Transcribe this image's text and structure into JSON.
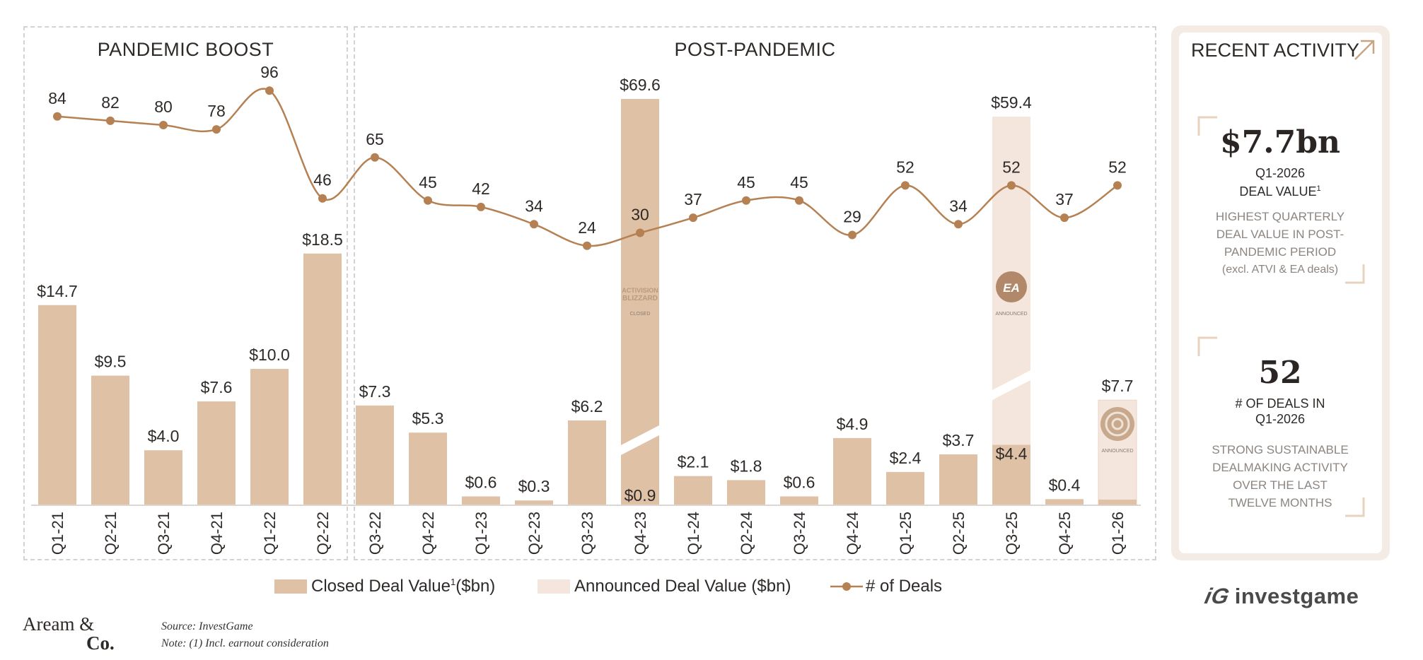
{
  "colors": {
    "closed": "#dfc1a5",
    "announced": "#f4e6dc",
    "line": "#b58153",
    "text": "#2e2a28",
    "muted": "#8d8580",
    "accent": "#c7a583"
  },
  "sections": [
    {
      "title": "PANDEMIC BOOST"
    },
    {
      "title": "POST-PANDEMIC"
    }
  ],
  "chart_data": {
    "type": "bar",
    "title": "",
    "categories": [
      "Q1-21",
      "Q2-21",
      "Q3-21",
      "Q4-21",
      "Q1-22",
      "Q2-22",
      "Q3-22",
      "Q4-22",
      "Q1-23",
      "Q2-23",
      "Q3-23",
      "Q4-23",
      "Q1-24",
      "Q2-24",
      "Q3-24",
      "Q4-24",
      "Q1-25",
      "Q2-25",
      "Q3-25",
      "Q4-25",
      "Q1-26"
    ],
    "series": [
      {
        "name": "Closed Deal Value",
        "values": [
          14.7,
          9.5,
          4.0,
          7.6,
          10.0,
          18.5,
          7.3,
          5.3,
          0.6,
          0.3,
          6.2,
          69.6,
          2.1,
          1.8,
          0.6,
          4.9,
          2.4,
          3.7,
          4.4,
          0.4,
          0.0
        ]
      },
      {
        "name": "Announced Deal Value ($bn)",
        "values": [
          0,
          0,
          0,
          0,
          0,
          0,
          0,
          0,
          0,
          0,
          0,
          0,
          0,
          0,
          0,
          0,
          0,
          0,
          55.0,
          0,
          7.7
        ]
      },
      {
        "name": "# of Deals",
        "type": "line",
        "values": [
          84,
          82,
          80,
          78,
          96,
          46,
          65,
          45,
          42,
          34,
          24,
          30,
          37,
          45,
          45,
          29,
          52,
          34,
          52,
          37,
          52
        ]
      }
    ],
    "bar_labels": [
      "$14.7",
      "$9.5",
      "$4.0",
      "$7.6",
      "$10.0",
      "$18.5",
      "$7.3",
      "$5.3",
      "$0.6",
      "$0.3",
      "$6.2",
      "$69.6",
      "$2.1",
      "$1.8",
      "$0.6",
      "$4.9",
      "$2.4",
      "$3.7",
      "$59.4",
      "$0.4",
      "$7.7"
    ],
    "inner_labels": [
      {
        "index": 11,
        "text": "$0.9"
      },
      {
        "index": 18,
        "text": "$4.4"
      }
    ],
    "badges": [
      {
        "index": 11,
        "logo": "ACTIVISION BLIZZARD",
        "status": "CLOSED"
      },
      {
        "index": 18,
        "logo": "EA",
        "status": "ANNOUNCED"
      },
      {
        "index": 20,
        "logo": "spiral-logo",
        "status": "ANNOUNCED"
      }
    ],
    "breaks": [
      11,
      18
    ],
    "legend": {
      "closed": "Closed Deal Value",
      "closed_sup": "1",
      "closed_unit": "($bn)",
      "announced": "Announced Deal Value ($bn)",
      "deals": "# of Deals"
    }
  },
  "recent_activity": {
    "title": "RECENT ACTIVITY",
    "stat1": {
      "value": "$7.7bn",
      "label_line1": "Q1-2026",
      "label_line2": "DEAL VALUE",
      "label_sup": "1",
      "desc": [
        "HIGHEST  QUARTERLY",
        "DEAL VALUE IN POST-",
        "PANDEMIC PERIOD",
        "(excl. ATVI & EA deals)"
      ]
    },
    "stat2": {
      "value": "52",
      "label_line1": "# OF DEALS IN",
      "label_line2": "Q1-2026",
      "desc": [
        "STRONG SUSTAINABLE",
        "DEALMAKING ACTIVITY",
        "OVER THE LAST",
        "TWELVE MONTHS"
      ]
    }
  },
  "footer": {
    "source": "Source: InvestGame",
    "note": "Note: (1) Incl. earnout consideration",
    "logo_line1": "Aream &",
    "logo_line2": "Co.",
    "brand": "investgame"
  }
}
